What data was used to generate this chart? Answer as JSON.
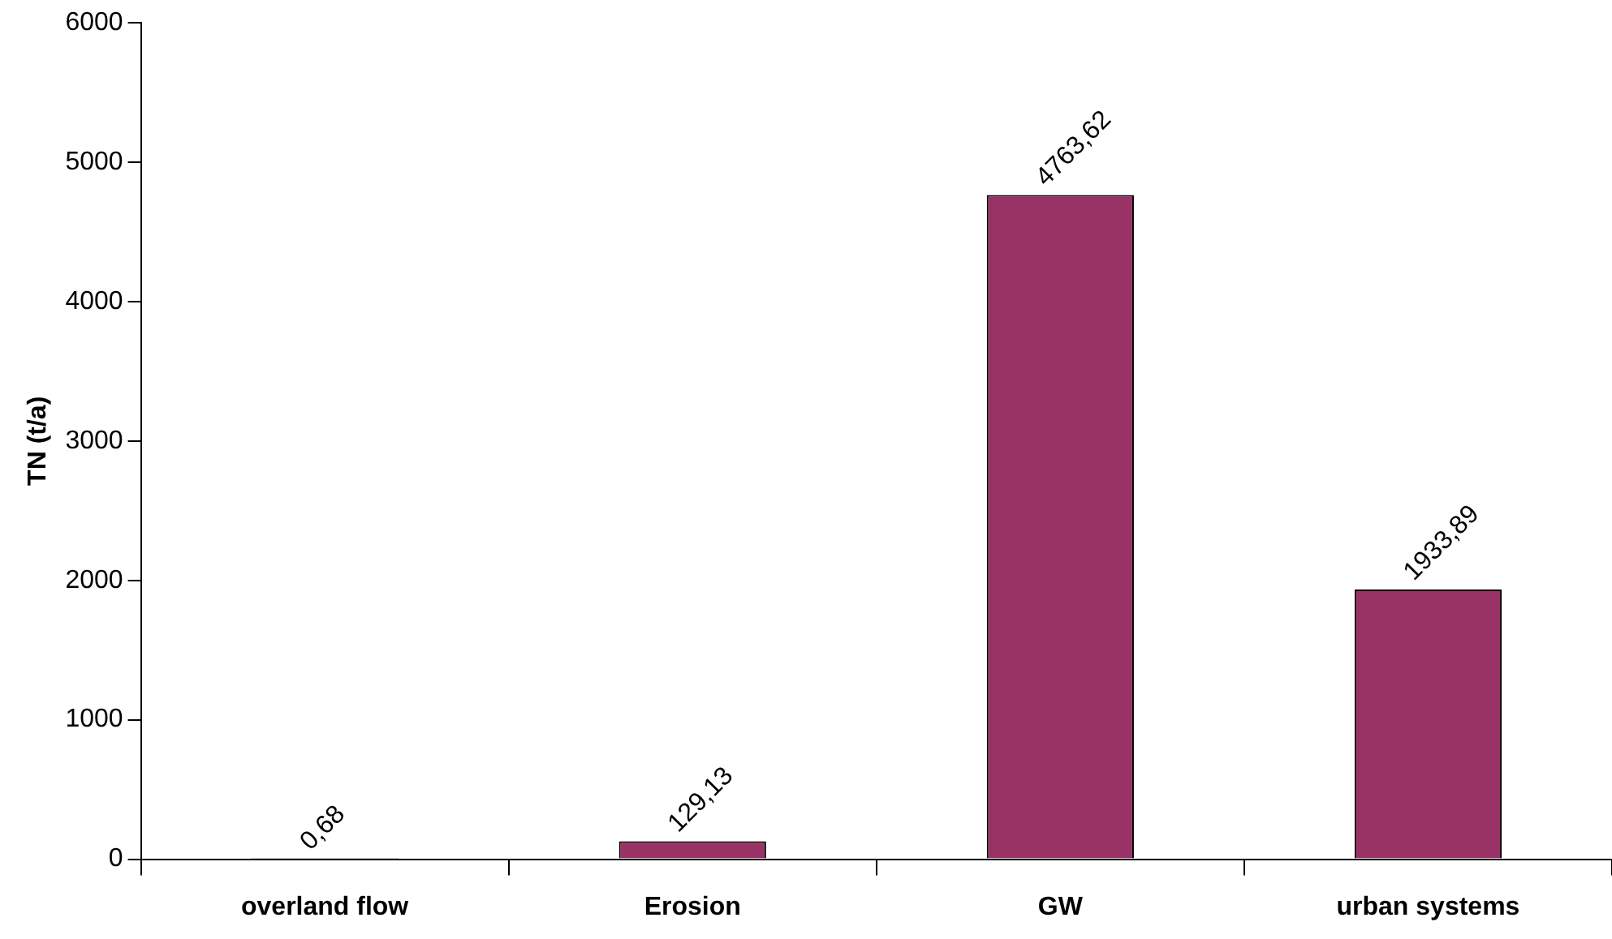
{
  "chart_data": {
    "type": "bar",
    "ylabel": "TN (t/a)",
    "categories": [
      "overland flow",
      "Erosion",
      "GW",
      "urban systems"
    ],
    "values": [
      0.68,
      129.13,
      4763.62,
      1933.89
    ],
    "value_labels": [
      "0,68",
      "129,13",
      "4763,62",
      "1933,89"
    ],
    "color": "#993366",
    "ylim": [
      0,
      6000
    ],
    "yticks": [
      0,
      1000,
      2000,
      3000,
      4000,
      5000,
      6000
    ],
    "grid": false,
    "legend": false
  }
}
